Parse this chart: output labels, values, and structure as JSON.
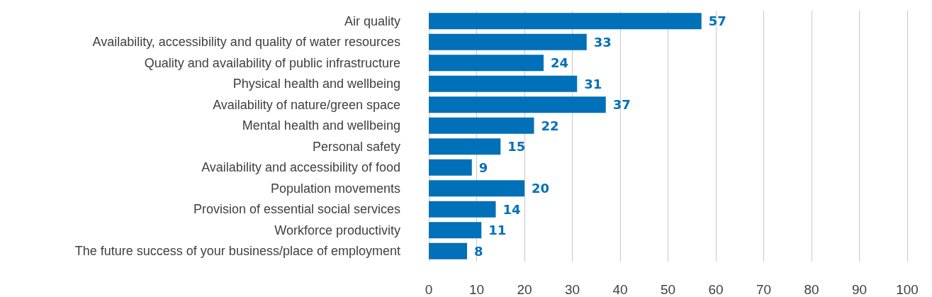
{
  "chart_data": {
    "type": "bar",
    "orientation": "horizontal",
    "categories": [
      "Air quality",
      "Availability, accessibility and quality of water resources",
      "Quality and availability of public infrastructure",
      "Physical health and wellbeing",
      "Availability of nature/green space",
      "Mental health and wellbeing",
      "Personal safety",
      "Availability and accessibility of food",
      "Population movements",
      "Provision of essential social services",
      "Workforce productivity",
      "The future success of your business/place of employment"
    ],
    "values": [
      57,
      33,
      24,
      31,
      37,
      22,
      15,
      9,
      20,
      14,
      11,
      8
    ],
    "color": "#0070b8",
    "xlim": [
      0,
      100
    ],
    "xticks": [
      0,
      10,
      20,
      30,
      40,
      50,
      60,
      70,
      80,
      90,
      100
    ],
    "grid": "x",
    "data_labels": true
  }
}
